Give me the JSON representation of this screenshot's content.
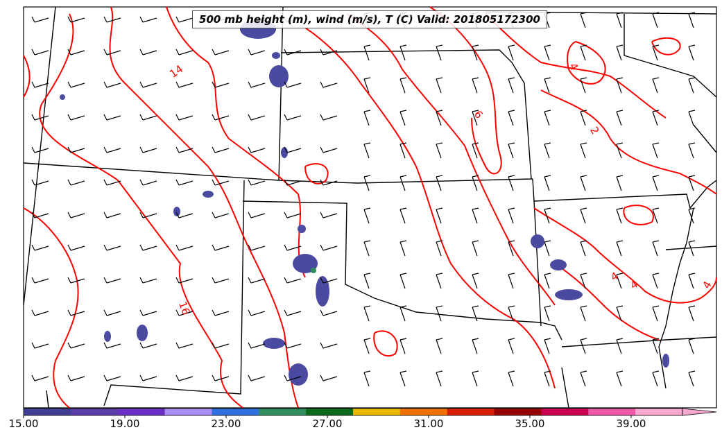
{
  "title": "500 mb height (m), wind (m/s), T (C) Valid: 201805172300",
  "contour_labels": [
    "14",
    "16",
    "6",
    "4",
    "2",
    "4",
    "4",
    "4"
  ],
  "colorbar": {
    "ticks": [
      "15.00",
      "19.00",
      "23.00",
      "27.00",
      "31.00",
      "35.00",
      "39.00"
    ],
    "colors": [
      "#3f3f96",
      "#5a3fa8",
      "#6a2fc4",
      "#a88ef0",
      "#2f6fe0",
      "#2f8f5f",
      "#0b6b1b",
      "#e8b800",
      "#f07000",
      "#d81e00",
      "#990000",
      "#cc0050",
      "#ef5aa8",
      "#f7a8d0"
    ]
  },
  "colors": {
    "contour": "#ff0000",
    "boundary": "#000000",
    "shading": "#4a4aa0"
  }
}
